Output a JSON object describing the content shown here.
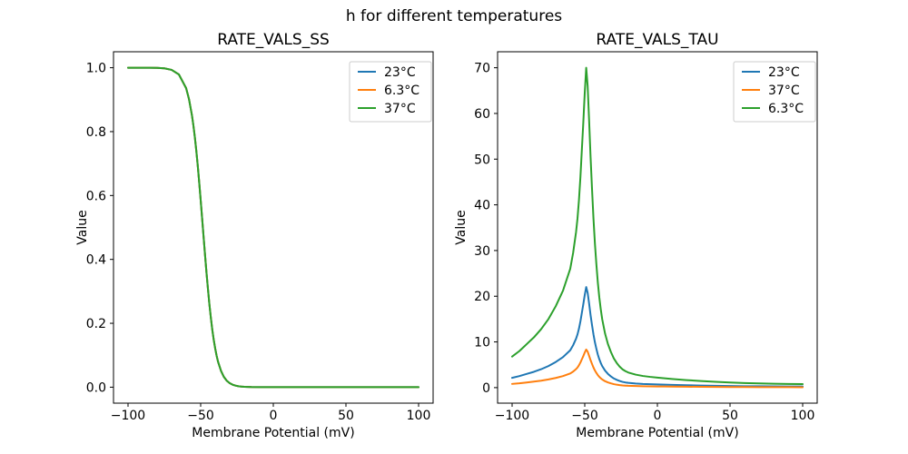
{
  "figure": {
    "suptitle": "h for different temperatures",
    "background": "#ffffff"
  },
  "palette": {
    "blue": "#1f77b4",
    "orange": "#ff7f0e",
    "green": "#2ca02c",
    "frame": "#000000",
    "legend_border": "#cccccc"
  },
  "chart_data": [
    {
      "type": "line",
      "title": "RATE_VALS_SS",
      "xlabel": "Membrane Potential (mV)",
      "ylabel": "Value",
      "xlim": [
        -110,
        110
      ],
      "ylim": [
        -0.05,
        1.05
      ],
      "grid": false,
      "legend": {
        "location": "upper right"
      },
      "xticks": {
        "values": [
          -100,
          -50,
          0,
          50,
          100
        ],
        "labels": [
          "−100",
          "−50",
          "0",
          "50",
          "100"
        ]
      },
      "yticks": {
        "values": [
          0,
          0.2,
          0.4,
          0.6,
          0.8,
          1.0
        ],
        "labels": [
          "0.0",
          "0.2",
          "0.4",
          "0.6",
          "0.8",
          "1.0"
        ]
      },
      "x": [
        -100,
        -95,
        -90,
        -85,
        -80,
        -75,
        -70,
        -65,
        -60,
        -58,
        -56,
        -55,
        -54,
        -53,
        -52,
        -51,
        -50,
        -49,
        -48,
        -47,
        -46,
        -45,
        -44,
        -43,
        -42,
        -41,
        -40,
        -39,
        -38,
        -36,
        -34,
        -32,
        -30,
        -28,
        -26,
        -24,
        -22,
        -20,
        -15,
        -10,
        -5,
        0,
        5,
        10,
        20,
        30,
        40,
        50,
        60,
        70,
        80,
        90,
        100
      ],
      "series": [
        {
          "name": "23°C",
          "color": "#1f77b4",
          "values": [
            1.0,
            1.0,
            0.9999,
            0.9998,
            0.9994,
            0.998,
            0.9933,
            0.979,
            0.936,
            0.901,
            0.851,
            0.819,
            0.782,
            0.74,
            0.693,
            0.641,
            0.586,
            0.529,
            0.471,
            0.414,
            0.359,
            0.308,
            0.26,
            0.218,
            0.18,
            0.148,
            0.121,
            0.098,
            0.079,
            0.051,
            0.032,
            0.02,
            0.0125,
            0.0078,
            0.0049,
            0.003,
            0.0019,
            0.0012,
            0.0004,
            0.0001,
            0.0,
            0.0,
            0.0,
            0.0,
            0.0,
            0.0,
            0.0,
            0.0,
            0.0,
            0.0,
            0.0,
            0.0,
            0.0
          ]
        },
        {
          "name": "6.3°C",
          "color": "#ff7f0e",
          "values": [
            1.0,
            1.0,
            0.9999,
            0.9998,
            0.9994,
            0.998,
            0.9933,
            0.979,
            0.936,
            0.901,
            0.851,
            0.819,
            0.782,
            0.74,
            0.693,
            0.641,
            0.586,
            0.529,
            0.471,
            0.414,
            0.359,
            0.308,
            0.26,
            0.218,
            0.18,
            0.148,
            0.121,
            0.098,
            0.079,
            0.051,
            0.032,
            0.02,
            0.0125,
            0.0078,
            0.0049,
            0.003,
            0.0019,
            0.0012,
            0.0004,
            0.0001,
            0.0,
            0.0,
            0.0,
            0.0,
            0.0,
            0.0,
            0.0,
            0.0,
            0.0,
            0.0,
            0.0,
            0.0,
            0.0
          ]
        },
        {
          "name": "37°C",
          "color": "#2ca02c",
          "values": [
            1.0,
            1.0,
            0.9999,
            0.9998,
            0.9994,
            0.998,
            0.9933,
            0.979,
            0.936,
            0.901,
            0.851,
            0.819,
            0.782,
            0.74,
            0.693,
            0.641,
            0.586,
            0.529,
            0.471,
            0.414,
            0.359,
            0.308,
            0.26,
            0.218,
            0.18,
            0.148,
            0.121,
            0.098,
            0.079,
            0.051,
            0.032,
            0.02,
            0.0125,
            0.0078,
            0.0049,
            0.003,
            0.0019,
            0.0012,
            0.0004,
            0.0001,
            0.0,
            0.0,
            0.0,
            0.0,
            0.0,
            0.0,
            0.0,
            0.0,
            0.0,
            0.0,
            0.0,
            0.0,
            0.0
          ]
        }
      ]
    },
    {
      "type": "line",
      "title": "RATE_VALS_TAU",
      "xlabel": "Membrane Potential (mV)",
      "ylabel": "Value",
      "xlim": [
        -110,
        110
      ],
      "ylim": [
        -3.4,
        73.5
      ],
      "grid": false,
      "legend": {
        "location": "upper right"
      },
      "xticks": {
        "values": [
          -100,
          -50,
          0,
          50,
          100
        ],
        "labels": [
          "−100",
          "−50",
          "0",
          "50",
          "100"
        ]
      },
      "yticks": {
        "values": [
          0,
          10,
          20,
          30,
          40,
          50,
          60,
          70
        ],
        "labels": [
          "0",
          "10",
          "20",
          "30",
          "40",
          "50",
          "60",
          "70"
        ]
      },
      "x": [
        -100,
        -95,
        -90,
        -85,
        -80,
        -75,
        -70,
        -65,
        -60,
        -58,
        -56,
        -55,
        -54,
        -53,
        -52,
        -51,
        -50,
        -49,
        -48,
        -47,
        -46,
        -45,
        -44,
        -43,
        -42,
        -41,
        -40,
        -39,
        -38,
        -36,
        -34,
        -32,
        -30,
        -28,
        -26,
        -24,
        -22,
        -20,
        -15,
        -10,
        -5,
        0,
        5,
        10,
        20,
        30,
        40,
        50,
        60,
        70,
        80,
        90,
        100
      ],
      "series": [
        {
          "name": "23°C",
          "color": "#1f77b4",
          "values": [
            2.14,
            2.52,
            2.99,
            3.46,
            4.03,
            4.72,
            5.6,
            6.67,
            8.18,
            9.28,
            10.69,
            11.64,
            12.89,
            14.47,
            16.35,
            18.24,
            20.28,
            22.0,
            20.75,
            18.4,
            15.88,
            13.68,
            11.64,
            9.91,
            8.49,
            7.23,
            6.23,
            5.41,
            4.72,
            3.71,
            2.99,
            2.45,
            2.01,
            1.7,
            1.45,
            1.26,
            1.13,
            1.04,
            0.9,
            0.8,
            0.74,
            0.69,
            0.64,
            0.6,
            0.52,
            0.46,
            0.4,
            0.35,
            0.31,
            0.29,
            0.27,
            0.25,
            0.24
          ]
        },
        {
          "name": "37°C",
          "color": "#ff7f0e",
          "values": [
            0.81,
            0.95,
            1.13,
            1.31,
            1.52,
            1.79,
            2.12,
            2.52,
            3.1,
            3.51,
            4.05,
            4.4,
            4.88,
            5.48,
            6.19,
            6.9,
            7.68,
            8.33,
            7.86,
            6.96,
            6.01,
            5.18,
            4.4,
            3.75,
            3.21,
            2.74,
            2.36,
            2.05,
            1.79,
            1.4,
            1.13,
            0.93,
            0.76,
            0.64,
            0.55,
            0.48,
            0.43,
            0.39,
            0.34,
            0.3,
            0.28,
            0.26,
            0.24,
            0.23,
            0.2,
            0.17,
            0.15,
            0.13,
            0.12,
            0.11,
            0.1,
            0.1,
            0.09
          ]
        },
        {
          "name": "6.3°C",
          "color": "#2ca02c",
          "values": [
            6.8,
            8.0,
            9.5,
            11.0,
            12.8,
            15.0,
            17.8,
            21.2,
            26.0,
            29.5,
            34.0,
            37.0,
            41.0,
            46.0,
            52.0,
            58.0,
            64.5,
            70.0,
            66.0,
            58.5,
            50.5,
            43.5,
            37.0,
            31.5,
            27.0,
            23.0,
            19.8,
            17.2,
            15.0,
            11.8,
            9.5,
            7.8,
            6.4,
            5.4,
            4.6,
            4.0,
            3.6,
            3.3,
            2.85,
            2.55,
            2.35,
            2.2,
            2.05,
            1.9,
            1.65,
            1.45,
            1.28,
            1.12,
            1.0,
            0.92,
            0.85,
            0.8,
            0.76
          ]
        }
      ]
    }
  ]
}
